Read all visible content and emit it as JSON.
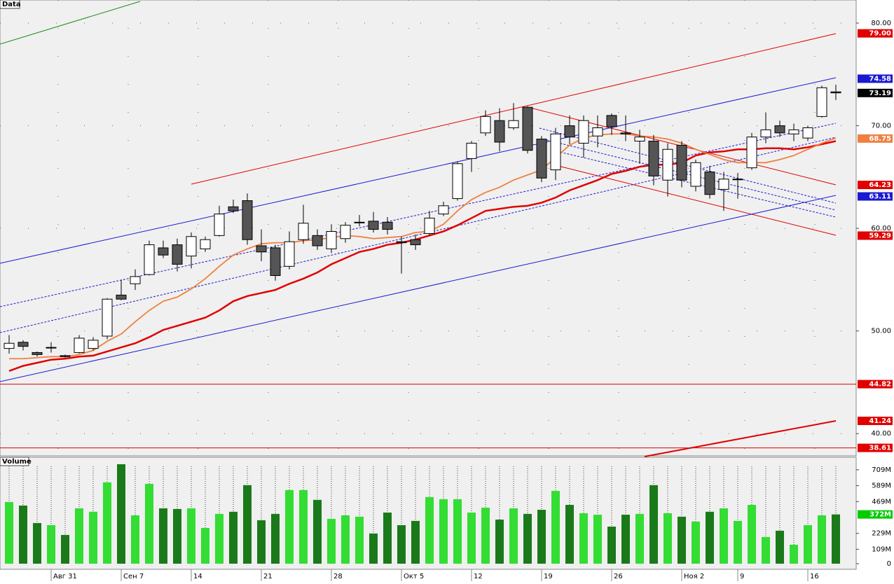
{
  "chart_data": [
    {
      "type": "candlestick",
      "title": "Data",
      "categories": [
        null,
        null,
        null,
        null,
        "Авг 31",
        null,
        null,
        null,
        null,
        "Сен 7",
        null,
        null,
        null,
        null,
        "14",
        null,
        null,
        null,
        null,
        "21",
        null,
        null,
        null,
        null,
        "28",
        null,
        null,
        null,
        null,
        "Окт 5",
        null,
        null,
        null,
        null,
        "12",
        null,
        null,
        null,
        null,
        "19",
        null,
        null,
        null,
        null,
        "26",
        null,
        null,
        null,
        null,
        "Ноя 2",
        null,
        null,
        null,
        "9",
        null,
        null,
        null,
        null,
        "16",
        null
      ],
      "open": [
        48.3,
        48.9,
        47.9,
        48.4,
        47.6,
        47.9,
        48.3,
        49.5,
        53.5,
        54.6,
        55.5,
        58.1,
        58.4,
        57.3,
        58.0,
        59.3,
        62.1,
        62.7,
        58.3,
        58.1,
        56.3,
        58.9,
        59.3,
        58.0,
        59.0,
        60.6,
        60.7,
        60.6,
        58.7,
        58.9,
        59.5,
        61.4,
        62.9,
        66.8,
        69.3,
        70.5,
        69.8,
        71.8,
        68.7,
        65.7,
        70.0,
        68.3,
        69.0,
        71.0,
        69.3,
        68.5,
        68.5,
        64.7,
        68.1,
        64.1,
        65.5,
        63.8,
        64.8,
        65.9,
        68.9,
        70.0,
        69.2,
        68.8,
        70.9,
        73.3
      ],
      "high": [
        49.6,
        49.1,
        48.0,
        48.9,
        47.7,
        49.6,
        49.4,
        53.2,
        55.0,
        56.0,
        58.8,
        58.8,
        59.0,
        59.6,
        59.2,
        62.2,
        62.8,
        63.4,
        59.9,
        58.4,
        59.7,
        62.3,
        59.9,
        60.4,
        60.6,
        61.3,
        61.6,
        61.1,
        59.2,
        59.4,
        61.7,
        62.6,
        66.5,
        68.5,
        71.5,
        71.7,
        72.2,
        71.9,
        69.0,
        69.8,
        71.0,
        71.0,
        71.0,
        71.2,
        71.0,
        69.6,
        69.1,
        68.3,
        68.5,
        66.7,
        66.1,
        65.5,
        65.4,
        69.3,
        71.3,
        70.5,
        70.2,
        70.0,
        73.9,
        74.0
      ],
      "low": [
        47.8,
        48.1,
        47.5,
        47.9,
        47.4,
        47.8,
        48.1,
        49.2,
        53.0,
        54.0,
        55.4,
        57.1,
        55.8,
        56.1,
        57.7,
        59.2,
        61.5,
        58.4,
        56.8,
        54.9,
        56.0,
        58.5,
        57.9,
        57.6,
        58.6,
        60.2,
        59.6,
        59.4,
        55.6,
        57.9,
        59.3,
        61.2,
        62.7,
        65.5,
        69.0,
        67.5,
        69.6,
        67.3,
        64.5,
        64.7,
        68.2,
        66.9,
        67.9,
        69.1,
        68.5,
        66.3,
        64.2,
        63.1,
        64.0,
        63.6,
        62.9,
        61.7,
        62.9,
        65.7,
        68.3,
        68.9,
        68.5,
        68.5,
        70.8,
        72.5
      ],
      "close": [
        48.8,
        48.5,
        47.7,
        48.4,
        47.5,
        49.3,
        49.1,
        53.1,
        53.1,
        55.3,
        58.4,
        57.4,
        56.5,
        59.2,
        58.9,
        61.4,
        61.7,
        58.9,
        57.7,
        55.4,
        58.7,
        60.5,
        58.3,
        59.7,
        60.3,
        60.6,
        59.9,
        59.9,
        58.6,
        58.4,
        61.0,
        62.2,
        66.3,
        68.3,
        70.9,
        68.4,
        70.5,
        67.6,
        64.9,
        69.2,
        68.9,
        70.5,
        69.8,
        69.9,
        69.2,
        68.9,
        65.1,
        67.7,
        64.7,
        66.4,
        63.3,
        64.8,
        64.8,
        68.9,
        69.6,
        69.3,
        69.6,
        69.8,
        73.7,
        73.2
      ],
      "up_color": "#ffffff",
      "down_color": "#555555",
      "overlays": [
        {
          "color": "#e00000",
          "values": [
            46.1,
            46.6,
            46.9,
            47.2,
            47.3,
            47.5,
            47.6,
            48.0,
            48.4,
            48.8,
            49.4,
            50.1,
            50.5,
            50.9,
            51.3,
            52.0,
            52.9,
            53.4,
            53.7,
            54.0,
            54.6,
            55.1,
            55.7,
            56.5,
            57.1,
            57.7,
            58.0,
            58.4,
            58.6,
            58.9,
            59.3,
            59.7,
            60.3,
            61.0,
            61.7,
            61.9,
            62.1,
            62.2,
            62.5,
            63.0,
            63.7,
            64.2,
            64.7,
            65.3,
            65.6,
            66.0,
            66.2,
            66.2,
            66.4,
            67.1,
            67.4,
            67.5,
            67.7,
            67.7,
            67.8,
            67.8,
            67.7,
            67.9,
            68.2,
            68.5
          ]
        },
        {
          "color": "#f08040",
          "values": [
            47.3,
            47.3,
            47.4,
            47.5,
            47.5,
            47.7,
            48.1,
            49.0,
            49.7,
            50.9,
            52.0,
            52.9,
            53.3,
            54.1,
            55.1,
            56.3,
            57.4,
            58.0,
            58.5,
            58.6,
            58.6,
            58.8,
            58.9,
            59.1,
            59.3,
            59.2,
            59.0,
            59.1,
            59.2,
            59.6,
            59.7,
            60.4,
            61.7,
            62.8,
            63.5,
            64.0,
            64.7,
            65.2,
            65.7,
            66.9,
            68.1,
            68.8,
            69.1,
            69.2,
            69.2,
            69.0,
            68.9,
            68.7,
            68.3,
            67.7,
            67.2,
            66.7,
            66.4,
            66.4,
            66.4,
            66.7,
            67.1,
            67.7,
            68.3,
            68.8
          ]
        }
      ],
      "ylim": [
        37.9,
        82.25
      ],
      "yticks": [
        {
          "value": 40,
          "label": "40.00"
        },
        {
          "value": 50,
          "label": "50.00"
        },
        {
          "value": 60,
          "label": "60.00"
        },
        {
          "value": 70,
          "label": "70.00"
        },
        {
          "value": 80,
          "label": "80.00"
        }
      ],
      "markers": [
        {
          "value": 79,
          "label": "79.00",
          "color": "#e00000"
        },
        {
          "value": 74.58,
          "label": "74.58",
          "color": "#1a1ad0"
        },
        {
          "value": 73.19,
          "label": "73.19",
          "color": "#000000"
        },
        {
          "value": 68.75,
          "label": "68.75",
          "color": "#f08040"
        },
        {
          "value": 64.23,
          "label": "64.23",
          "color": "#e00000"
        },
        {
          "value": 63.11,
          "label": "63.11",
          "color": "#1a1ad0"
        },
        {
          "value": 59.29,
          "label": "59.29",
          "color": "#e00000"
        },
        {
          "value": 44.82,
          "label": "44.82",
          "color": "#e00000",
          "hline": true
        },
        {
          "value": 41.24,
          "label": "41.24",
          "color": "#e00000"
        },
        {
          "value": 38.61,
          "label": "38.61",
          "color": "#e00000",
          "hline": true
        }
      ],
      "grid": true
    },
    {
      "type": "bar",
      "title": "Volume",
      "values": [
        466,
        439,
        307,
        291,
        217,
        418,
        392,
        614,
        751,
        365,
        603,
        418,
        413,
        418,
        270,
        376,
        392,
        593,
        328,
        376,
        556,
        556,
        482,
        339,
        365,
        355,
        228,
        386,
        291,
        323,
        503,
        487,
        487,
        386,
        423,
        333,
        418,
        376,
        407,
        550,
        444,
        381,
        370,
        280,
        370,
        376,
        593,
        381,
        355,
        318,
        392,
        418,
        323,
        444,
        201,
        249,
        143,
        291,
        365,
        372
      ],
      "color": "#33dd33",
      "down_color": "#1a7a1a",
      "ylim": [
        0,
        793
      ],
      "yticks": [
        0,
        {
          "value": 109,
          "label": "109M"
        },
        {
          "value": 229,
          "label": "229M"
        },
        {
          "value": 469,
          "label": "469M"
        },
        {
          "value": 589,
          "label": "589M"
        },
        {
          "value": 709,
          "label": "709M"
        }
      ],
      "markers": [
        {
          "value": 372,
          "label": "372M",
          "color": "#00cc00"
        }
      ]
    }
  ]
}
